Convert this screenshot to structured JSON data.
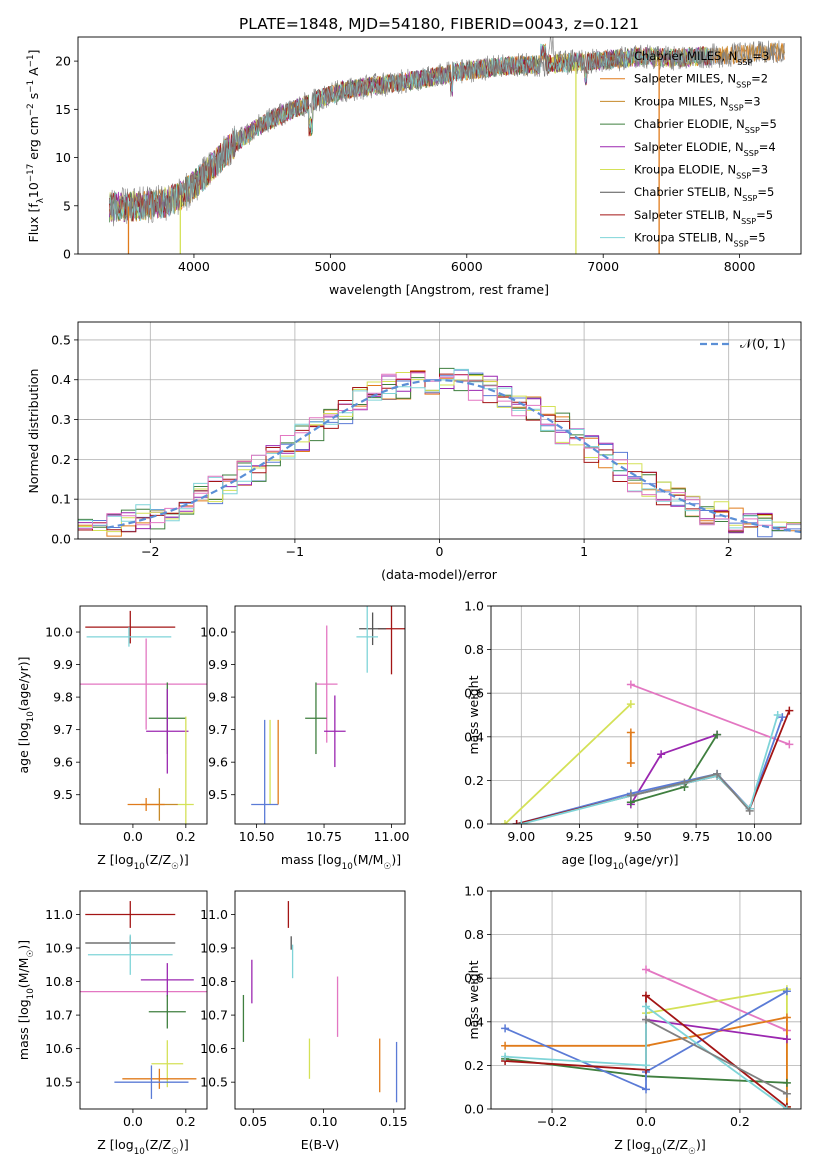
{
  "figure_title": "PLATE=1848, MJD=54180, FIBERID=0043, z=0.121",
  "colors": {
    "c1": "#808080",
    "c2": "#e07b1b",
    "c3": "#c68a2a",
    "c4": "#3f7f3f",
    "c5": "#9b27b0",
    "c6": "#d4e157",
    "c7": "#555555",
    "c8": "#a31515",
    "c9": "#7fd4d8",
    "c10": "#e377c2",
    "c11": "#5b7bd6",
    "gauss": "#5b8fd6"
  },
  "chart_data": [
    {
      "id": "spectrum",
      "type": "line",
      "xlabel": "wavelength [Angstrom, rest frame]",
      "ylabel": "Flux [f",
      "ylabel_parts": [
        "Flux [f",
        "λ",
        "10",
        "−17",
        " erg cm",
        "−2",
        " s",
        "−1",
        " A",
        "−1",
        "]"
      ],
      "xlim": [
        3150,
        8450
      ],
      "ylim": [
        0,
        22.5
      ],
      "xticks": [
        4000,
        5000,
        6000,
        7000,
        8000
      ],
      "yticks": [
        0,
        5,
        10,
        15,
        20
      ],
      "grid": false,
      "legend_position": "top-right",
      "continuum_x": [
        3380,
        3600,
        3800,
        3950,
        4100,
        4300,
        4500,
        4700,
        4900,
        5100,
        5300,
        5500,
        5700,
        5900,
        6100,
        6300,
        6500,
        6700,
        6900,
        7100,
        7300,
        7500,
        7700,
        7900,
        8100,
        8300
      ],
      "continuum_y": [
        4.8,
        5.0,
        5.3,
        6.5,
        8.5,
        11.5,
        13.5,
        14.8,
        16.0,
        17.0,
        17.4,
        17.8,
        18.2,
        18.8,
        19.2,
        19.5,
        19.6,
        19.8,
        20.0,
        20.2,
        20.5,
        20.3,
        20.5,
        20.6,
        20.8,
        20.9
      ],
      "series": [
        {
          "label_parts": [
            "Chabrier MILES, N",
            "SSP",
            "=3"
          ],
          "color": "c1"
        },
        {
          "label_parts": [
            "Salpeter MILES, N",
            "SSP",
            "=2"
          ],
          "color": "c2"
        },
        {
          "label_parts": [
            "Kroupa MILES, N",
            "SSP",
            "=3"
          ],
          "color": "c3"
        },
        {
          "label_parts": [
            "Chabrier ELODIE, N",
            "SSP",
            "=5"
          ],
          "color": "c4"
        },
        {
          "label_parts": [
            "Salpeter ELODIE, N",
            "SSP",
            "=4"
          ],
          "color": "c5"
        },
        {
          "label_parts": [
            "Kroupa ELODIE, N",
            "SSP",
            "=3"
          ],
          "color": "c6"
        },
        {
          "label_parts": [
            "Chabrier STELIB, N",
            "SSP",
            "=5"
          ],
          "color": "c7"
        },
        {
          "label_parts": [
            "Salpeter STELIB, N",
            "SSP",
            "=5"
          ],
          "color": "c8"
        },
        {
          "label_parts": [
            "Kroupa STELIB, N",
            "SSP",
            "=5"
          ],
          "color": "c9"
        }
      ],
      "dropouts": [
        {
          "x": 3520,
          "color": "c2"
        },
        {
          "x": 3900,
          "color": "c6"
        },
        {
          "x": 6800,
          "color": "c6"
        },
        {
          "x": 7410,
          "color": "c2"
        }
      ]
    },
    {
      "id": "residuals",
      "type": "step",
      "xlabel": "(data-model)/error",
      "ylabel": "Normed distribution",
      "xlim": [
        -2.5,
        2.5
      ],
      "ylim": [
        0,
        0.545
      ],
      "xticks": [
        -2,
        -1,
        0,
        1,
        2
      ],
      "xtick_labels": [
        "−2",
        "−1",
        "0",
        "1",
        "2"
      ],
      "yticks": [
        0.0,
        0.1,
        0.2,
        0.3,
        0.4,
        0.5
      ],
      "grid": true,
      "legend_position": "top-right",
      "legend_label": "𝒩(0, 1)",
      "bin_width": 0.1,
      "colors": [
        "c11",
        "c2",
        "c4",
        "c5",
        "c6",
        "c8",
        "c9",
        "c10"
      ]
    },
    {
      "id": "age_vs_Z",
      "type": "scatter-errorbar",
      "xlabel": "Z [log",
      "xlabel_parts": [
        "Z [log",
        "10",
        "(Z/Z",
        "☉",
        ")]"
      ],
      "ylabel_parts": [
        "age  [log",
        "10",
        "(age/yr)]"
      ],
      "xlim": [
        -0.2,
        0.28
      ],
      "ylim": [
        9.41,
        10.08
      ],
      "xticks": [
        0.0,
        0.2
      ],
      "xtick_labels": [
        "0.0",
        "0.2"
      ],
      "yticks": [
        9.5,
        9.6,
        9.7,
        9.8,
        9.9,
        10.0
      ],
      "grid": false,
      "points": [
        {
          "x": -0.01,
          "y": 10.015,
          "xerr": 0.17,
          "yerr": 0.05,
          "color": "c8"
        },
        {
          "x": -0.015,
          "y": 9.985,
          "xerr": 0.16,
          "yerr": 0.03,
          "color": "c9"
        },
        {
          "x": 0.05,
          "y": 9.84,
          "xerr": 0.29,
          "yerr": 0.14,
          "color": "c10"
        },
        {
          "x": 0.13,
          "y": 9.735,
          "xerr": 0.07,
          "yerr": 0.11,
          "color": "c4"
        },
        {
          "x": 0.13,
          "y": 9.695,
          "xerr": 0.08,
          "yerr": 0.13,
          "color": "c5"
        },
        {
          "x": 0.2,
          "y": 9.47,
          "xerr": 0.03,
          "yerr": 0.27,
          "color": "c6"
        },
        {
          "x": 0.1,
          "y": 9.47,
          "xerr": 0.07,
          "yerr": 0.05,
          "color": "c3"
        },
        {
          "x": 0.05,
          "y": 9.47,
          "xerr": 0.07,
          "yerr": 0.02,
          "color": "c2"
        }
      ]
    },
    {
      "id": "age_vs_mass",
      "type": "scatter-errorbar",
      "xlabel_parts": [
        "mass [log",
        "10",
        "(M/M",
        "☉",
        ")]"
      ],
      "xlim": [
        10.42,
        11.05
      ],
      "ylim": [
        9.41,
        10.08
      ],
      "xticks": [
        10.5,
        10.75,
        11.0
      ],
      "xtick_labels": [
        "10.50",
        "10.75",
        "11.00"
      ],
      "yticks": [
        9.5,
        9.6,
        9.7,
        9.8,
        9.9,
        10.0
      ],
      "grid": false,
      "points": [
        {
          "x": 11.0,
          "y": 10.01,
          "xerr": 0.05,
          "yerr": 0.14,
          "color": "c8"
        },
        {
          "x": 10.93,
          "y": 10.01,
          "xerr": 0.05,
          "yerr": 0.05,
          "color": "c7"
        },
        {
          "x": 10.91,
          "y": 9.985,
          "xerr": 0.04,
          "yerr": 0.11,
          "color": "c9"
        },
        {
          "x": 10.76,
          "y": 9.84,
          "xerr": 0.04,
          "yerr": 0.18,
          "color": "c10"
        },
        {
          "x": 10.72,
          "y": 9.735,
          "xerr": 0.04,
          "yerr": 0.11,
          "color": "c4"
        },
        {
          "x": 10.79,
          "y": 9.695,
          "xerr": 0.04,
          "yerr": 0.11,
          "color": "c5"
        },
        {
          "x": 10.55,
          "y": 9.6,
          "xerr": 0.0,
          "yerr": 0.13,
          "color": "c6"
        },
        {
          "x": 10.53,
          "y": 9.47,
          "xerr": 0.05,
          "yerr": 0.26,
          "color": "c11"
        },
        {
          "x": 10.58,
          "y": 9.6,
          "xerr": 0.0,
          "yerr": 0.13,
          "color": "c2"
        }
      ]
    },
    {
      "id": "massweight_vs_age",
      "type": "line",
      "xlabel_parts": [
        "age  [log",
        "10",
        "(age/yr)]"
      ],
      "ylabel": "mass weight",
      "xlim": [
        8.87,
        10.2
      ],
      "ylim": [
        0,
        1.0
      ],
      "xticks": [
        9.0,
        9.25,
        9.5,
        9.75,
        10.0
      ],
      "xtick_labels": [
        "9.00",
        "9.25",
        "9.50",
        "9.75",
        "10.00"
      ],
      "yticks": [
        0.0,
        0.2,
        0.4,
        0.6,
        0.8,
        1.0
      ],
      "grid": true,
      "series": [
        {
          "color": "c10",
          "x": [
            9.47,
            10.15
          ],
          "y": [
            0.64,
            0.365
          ]
        },
        {
          "color": "c6",
          "x": [
            8.93,
            9.47
          ],
          "y": [
            0.0,
            0.55
          ]
        },
        {
          "color": "c2",
          "x": [
            9.47,
            9.47
          ],
          "y": [
            0.42,
            0.28
          ]
        },
        {
          "color": "c5",
          "x": [
            9.47,
            9.6,
            9.84
          ],
          "y": [
            0.09,
            0.32,
            0.41
          ]
        },
        {
          "color": "c4",
          "x": [
            9.47,
            9.7,
            9.84
          ],
          "y": [
            0.1,
            0.17,
            0.41
          ]
        },
        {
          "color": "c11",
          "x": [
            8.98,
            9.47,
            9.84,
            9.98,
            10.12
          ],
          "y": [
            0.0,
            0.14,
            0.23,
            0.07,
            0.49
          ]
        },
        {
          "color": "c8",
          "x": [
            8.98,
            9.47,
            9.84,
            9.98,
            10.15
          ],
          "y": [
            0.0,
            0.13,
            0.22,
            0.07,
            0.52
          ]
        },
        {
          "color": "c9",
          "x": [
            9.0,
            9.47,
            9.84,
            9.98,
            10.1
          ],
          "y": [
            0.0,
            0.13,
            0.22,
            0.07,
            0.5
          ]
        },
        {
          "color": "c1",
          "x": [
            9.47,
            9.7,
            9.84,
            9.98
          ],
          "y": [
            0.13,
            0.19,
            0.23,
            0.06
          ]
        }
      ]
    },
    {
      "id": "mass_vs_Z",
      "type": "scatter-errorbar",
      "xlabel_parts": [
        "Z [log",
        "10",
        "(Z/Z",
        "☉",
        ")]"
      ],
      "ylabel_parts": [
        "mass [log",
        "10",
        "(M/M",
        "☉",
        ")]"
      ],
      "xlim": [
        -0.2,
        0.28
      ],
      "ylim": [
        10.42,
        11.07
      ],
      "xticks": [
        0.0,
        0.2
      ],
      "xtick_labels": [
        "0.0",
        "0.2"
      ],
      "yticks": [
        10.5,
        10.6,
        10.7,
        10.8,
        10.9,
        11.0
      ],
      "grid": false,
      "points": [
        {
          "x": -0.01,
          "y": 11.0,
          "xerr": 0.17,
          "yerr": 0.04,
          "color": "c8"
        },
        {
          "x": -0.01,
          "y": 10.915,
          "xerr": 0.17,
          "yerr": 0.02,
          "color": "c7"
        },
        {
          "x": -0.01,
          "y": 10.88,
          "xerr": 0.16,
          "yerr": 0.06,
          "color": "c9"
        },
        {
          "x": 0.05,
          "y": 10.77,
          "xerr": 0.29,
          "yerr": 0.0,
          "color": "c10"
        },
        {
          "x": 0.13,
          "y": 10.805,
          "xerr": 0.1,
          "yerr": 0.05,
          "color": "c5"
        },
        {
          "x": 0.13,
          "y": 10.71,
          "xerr": 0.07,
          "yerr": 0.05,
          "color": "c4"
        },
        {
          "x": 0.13,
          "y": 10.555,
          "xerr": 0.06,
          "yerr": 0.07,
          "color": "c6"
        },
        {
          "x": 0.1,
          "y": 10.51,
          "xerr": 0.14,
          "yerr": 0.03,
          "color": "c2"
        },
        {
          "x": 0.07,
          "y": 10.5,
          "xerr": 0.14,
          "yerr": 0.05,
          "color": "c11"
        }
      ]
    },
    {
      "id": "mass_vs_ebv",
      "type": "errorbar",
      "xlabel": "E(B-V)",
      "xlim": [
        0.037,
        0.158
      ],
      "ylim": [
        10.42,
        11.07
      ],
      "xticks": [
        0.05,
        0.1,
        0.15
      ],
      "xtick_labels": [
        "0.05",
        "0.10",
        "0.15"
      ],
      "yticks": [
        10.5,
        10.6,
        10.7,
        10.8,
        10.9,
        11.0
      ],
      "grid": false,
      "points": [
        {
          "x": 0.043,
          "y": 10.69,
          "yerr": 0.07,
          "color": "c4"
        },
        {
          "x": 0.049,
          "y": 10.8,
          "yerr": 0.065,
          "color": "c5"
        },
        {
          "x": 0.075,
          "y": 11.0,
          "yerr": 0.04,
          "color": "c8"
        },
        {
          "x": 0.077,
          "y": 10.915,
          "yerr": 0.02,
          "color": "c7"
        },
        {
          "x": 0.078,
          "y": 10.86,
          "yerr": 0.05,
          "color": "c9"
        },
        {
          "x": 0.09,
          "y": 10.57,
          "yerr": 0.06,
          "color": "c6"
        },
        {
          "x": 0.11,
          "y": 10.725,
          "yerr": 0.09,
          "color": "c10"
        },
        {
          "x": 0.14,
          "y": 10.55,
          "yerr": 0.08,
          "color": "c2"
        },
        {
          "x": 0.152,
          "y": 10.53,
          "yerr": 0.09,
          "color": "c11"
        }
      ]
    },
    {
      "id": "massweight_vs_Z",
      "type": "line",
      "xlabel_parts": [
        "Z [log",
        "10",
        "(Z/Z",
        "☉",
        ")]"
      ],
      "ylabel": "mass weight",
      "xlim": [
        -0.33,
        0.33
      ],
      "ylim": [
        0,
        1.0
      ],
      "xticks": [
        -0.2,
        0.0,
        0.2
      ],
      "xtick_labels": [
        "−0.2",
        "0.0",
        "0.2"
      ],
      "yticks": [
        0.0,
        0.2,
        0.4,
        0.6,
        0.8,
        1.0
      ],
      "grid": true,
      "series": [
        {
          "color": "c10",
          "x": [
            0.0,
            0.3
          ],
          "y": [
            0.64,
            0.36
          ]
        },
        {
          "color": "c6",
          "x": [
            0.0,
            0.3,
            0.3
          ],
          "y": [
            0.44,
            0.55,
            0.01
          ]
        },
        {
          "color": "c2",
          "x": [
            -0.3,
            0.0,
            0.3,
            0.3
          ],
          "y": [
            0.29,
            0.29,
            0.42,
            0.0
          ]
        },
        {
          "color": "c5",
          "x": [
            0.0,
            0.3
          ],
          "y": [
            0.41,
            0.32
          ]
        },
        {
          "color": "c4",
          "x": [
            -0.3,
            0.0,
            0.3
          ],
          "y": [
            0.23,
            0.15,
            0.12
          ]
        },
        {
          "color": "c11",
          "x": [
            -0.3,
            0.0,
            0.0,
            0.3
          ],
          "y": [
            0.37,
            0.09,
            0.17,
            0.54
          ]
        },
        {
          "color": "c8",
          "x": [
            -0.3,
            0.0,
            0.0,
            0.3
          ],
          "y": [
            0.22,
            0.18,
            0.52,
            0.01
          ]
        },
        {
          "color": "c9",
          "x": [
            -0.3,
            0.0,
            0.0,
            0.3
          ],
          "y": [
            0.24,
            0.2,
            0.47,
            0.0
          ]
        },
        {
          "color": "c1",
          "x": [
            0.0,
            0.3
          ],
          "y": [
            0.41,
            0.07
          ]
        }
      ]
    }
  ]
}
